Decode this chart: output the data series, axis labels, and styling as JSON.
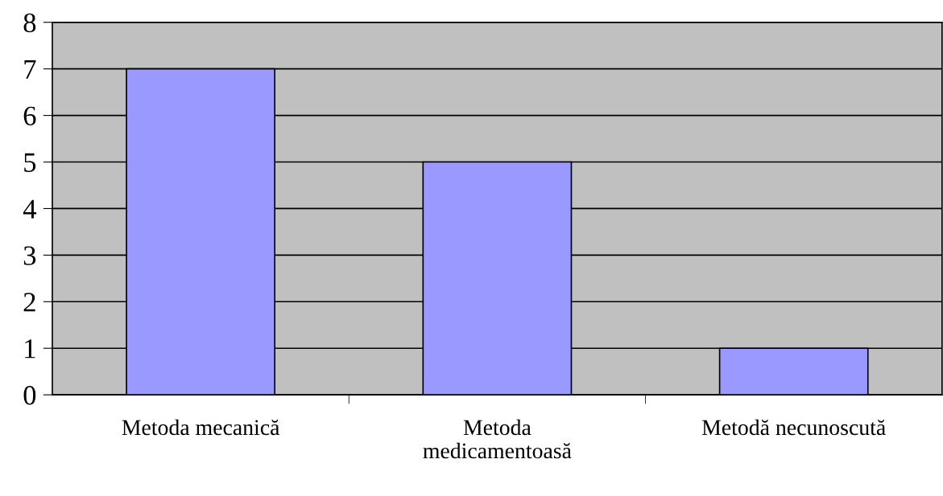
{
  "chart_data": {
    "type": "bar",
    "categories": [
      "Metoda mecanică",
      "Metoda\nmedicamentoasă",
      "Metodă necunoscută"
    ],
    "values": [
      7,
      5,
      1
    ],
    "color": "#9999ff",
    "ylim": [
      0,
      8
    ],
    "yticks": [
      0,
      1,
      2,
      3,
      4,
      5,
      6,
      7,
      8
    ],
    "grid": "y"
  }
}
